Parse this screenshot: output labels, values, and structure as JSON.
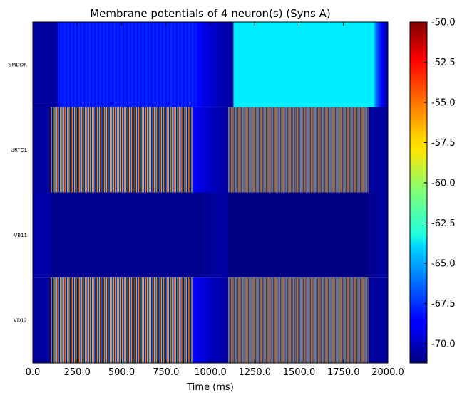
{
  "chart_data": {
    "type": "heatmap",
    "title": "Membrane potentials of 4 neuron(s) (Syns A)",
    "xlabel": "Time (ms)",
    "ylabel": "",
    "xlim": [
      0,
      2000
    ],
    "x_ticks": [
      "0.0",
      "250.0",
      "500.0",
      "750.0",
      "1000.0",
      "1250.0",
      "1500.0",
      "1750.0",
      "2000.0"
    ],
    "x_tick_values": [
      0,
      250,
      500,
      750,
      1000,
      1250,
      1500,
      1750,
      2000
    ],
    "rows": [
      "SMDDR",
      "URYDL",
      "VB11",
      "VD12"
    ],
    "colormap": "jet",
    "colorbar": {
      "range": [
        -71.2,
        -50.0
      ],
      "ticks": [
        "-50.0",
        "-52.5",
        "-55.0",
        "-57.5",
        "-60.0",
        "-62.5",
        "-65.0",
        "-67.5",
        "-70.0"
      ],
      "tick_values": [
        -50.0,
        -52.5,
        -55.0,
        -57.5,
        -60.0,
        -62.5,
        -65.0,
        -67.5,
        -70.0
      ]
    },
    "series": [
      {
        "name": "SMDDR",
        "segments": [
          {
            "t_start": 0,
            "t_end": 140,
            "pattern": "steady",
            "v": -70.6
          },
          {
            "t_start": 140,
            "t_end": 920,
            "pattern": "oscillating",
            "v_min": -68.4,
            "v_max": -67.6,
            "period_ms": 20
          },
          {
            "t_start": 920,
            "t_end": 1130,
            "pattern": "decay",
            "v_from": -68.0,
            "v_to": -70.6
          },
          {
            "t_start": 1130,
            "t_end": 1920,
            "pattern": "steady",
            "v": -63.6
          },
          {
            "t_start": 1920,
            "t_end": 2000,
            "pattern": "decay",
            "v_from": -63.6,
            "v_to": -70.6
          }
        ]
      },
      {
        "name": "URYDL",
        "segments": [
          {
            "t_start": 0,
            "t_end": 100,
            "pattern": "steady",
            "v": -70.6
          },
          {
            "t_start": 100,
            "t_end": 900,
            "pattern": "spiking",
            "v_min": -70.8,
            "v_max": -50.4,
            "period_ms": 20
          },
          {
            "t_start": 900,
            "t_end": 1100,
            "pattern": "decay",
            "v_from": -68.0,
            "v_to": -70.6
          },
          {
            "t_start": 1100,
            "t_end": 1890,
            "pattern": "spiking",
            "v_min": -70.8,
            "v_max": -50.4,
            "period_ms": 10
          },
          {
            "t_start": 1890,
            "t_end": 2000,
            "pattern": "steady",
            "v": -70.6
          }
        ]
      },
      {
        "name": "VB11",
        "segments": [
          {
            "t_start": 0,
            "t_end": 100,
            "pattern": "steady",
            "v": -70.4
          },
          {
            "t_start": 100,
            "t_end": 950,
            "pattern": "steady",
            "v": -70.9
          },
          {
            "t_start": 950,
            "t_end": 1100,
            "pattern": "decay",
            "v_from": -70.9,
            "v_to": -70.4
          },
          {
            "t_start": 1100,
            "t_end": 1890,
            "pattern": "steady",
            "v": -71.1
          },
          {
            "t_start": 1890,
            "t_end": 2000,
            "pattern": "decay",
            "v_from": -71.1,
            "v_to": -70.4
          }
        ]
      },
      {
        "name": "VD12",
        "segments": [
          {
            "t_start": 0,
            "t_end": 100,
            "pattern": "steady",
            "v": -70.6
          },
          {
            "t_start": 100,
            "t_end": 900,
            "pattern": "spiking",
            "v_min": -70.8,
            "v_max": -50.4,
            "period_ms": 20
          },
          {
            "t_start": 900,
            "t_end": 1100,
            "pattern": "decay",
            "v_from": -68.0,
            "v_to": -70.6
          },
          {
            "t_start": 1100,
            "t_end": 1890,
            "pattern": "spiking",
            "v_min": -70.8,
            "v_max": -50.4,
            "period_ms": 10
          },
          {
            "t_start": 1890,
            "t_end": 2000,
            "pattern": "steady",
            "v": -70.6
          }
        ]
      }
    ]
  }
}
